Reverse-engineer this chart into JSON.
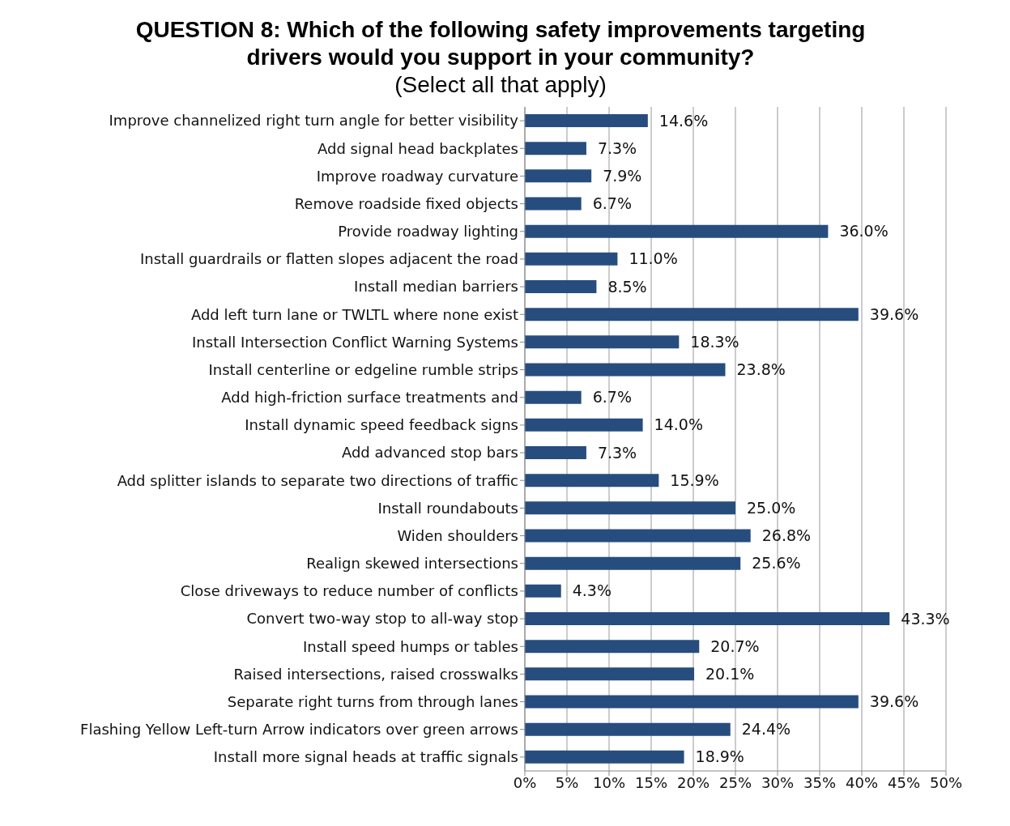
{
  "chart_data": {
    "type": "bar",
    "orientation": "horizontal",
    "title": "QUESTION 8: Which of the following safety improvements targeting drivers would you support in your community?",
    "subtitle": "(Select all that apply)",
    "categories": [
      "Improve channelized right turn angle for better visibility",
      "Add signal head backplates",
      "Improve roadway curvature",
      "Remove roadside fixed objects",
      "Provide roadway lighting",
      "Install guardrails or flatten slopes adjacent the road",
      "Install median barriers",
      "Add left turn lane or TWLTL where none exist",
      "Install Intersection Conflict Warning Systems",
      "Install centerline or edgeline rumble strips",
      "Add high-friction surface treatments and",
      "Install dynamic speed feedback signs",
      "Add advanced stop bars",
      "Add splitter islands to separate two directions of traffic",
      "Install roundabouts",
      "Widen shoulders",
      "Realign skewed intersections",
      "Close driveways to reduce number of conflicts",
      "Convert two-way stop to all-way stop",
      "Install speed humps or tables",
      "Raised intersections, raised crosswalks",
      "Separate right turns from through lanes",
      "Flashing Yellow Left-turn Arrow indicators over green arrows",
      "Install more signal heads at traffic signals"
    ],
    "values": [
      14.6,
      7.3,
      7.9,
      6.7,
      36.0,
      11.0,
      8.5,
      39.6,
      18.3,
      23.8,
      6.7,
      14.0,
      7.3,
      15.9,
      25.0,
      26.8,
      25.6,
      4.3,
      43.3,
      20.7,
      20.1,
      39.6,
      24.4,
      18.9
    ],
    "value_labels": [
      "14.6%",
      "7.3%",
      "7.9%",
      "6.7%",
      "36.0%",
      "11.0%",
      "8.5%",
      "39.6%",
      "18.3%",
      "23.8%",
      "6.7%",
      "14.0%",
      "7.3%",
      "15.9%",
      "25.0%",
      "26.8%",
      "25.6%",
      "4.3%",
      "43.3%",
      "20.7%",
      "20.1%",
      "39.6%",
      "24.4%",
      "18.9%"
    ],
    "color": "#264d7e",
    "xlim": [
      0,
      50
    ],
    "xticks": [
      {
        "value": 0,
        "label": "0%"
      },
      {
        "value": 5,
        "label": "5%"
      },
      {
        "value": 10,
        "label": "10%"
      },
      {
        "value": 15,
        "label": "15%"
      },
      {
        "value": 20,
        "label": "20%"
      },
      {
        "value": 25,
        "label": "25%"
      },
      {
        "value": 30,
        "label": "30%"
      },
      {
        "value": 35,
        "label": "35%"
      },
      {
        "value": 40,
        "label": "40%"
      },
      {
        "value": 45,
        "label": "45%"
      },
      {
        "value": 50,
        "label": "50%"
      }
    ],
    "grid": "x",
    "legend": false
  }
}
